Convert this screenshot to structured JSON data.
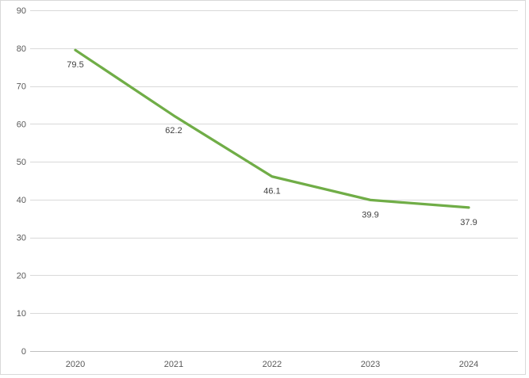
{
  "chart": {
    "background_color": "#FFFFFF",
    "border_color": "#D9D9D9",
    "title": "",
    "legend_visible": false
  },
  "chart_data": {
    "type": "line",
    "categories": [
      "2020",
      "2021",
      "2022",
      "2023",
      "2024"
    ],
    "values": [
      79.5,
      62.2,
      46.1,
      39.9,
      37.9
    ],
    "data_labels": [
      "79.5",
      "62.2",
      "46.1",
      "39.9",
      "37.9"
    ],
    "title": "",
    "xlabel": "",
    "ylabel": "",
    "ylim": [
      0,
      90
    ],
    "y_ticks": [
      0,
      10,
      20,
      30,
      40,
      50,
      60,
      70,
      80,
      90
    ],
    "grid": true,
    "legend_position": "none",
    "line_color": "#70AD47",
    "gridline_color": "#D9D9D9",
    "axis_line_color": "#BFBFBF",
    "tick_label_color": "#595959",
    "data_label_color": "#404040"
  }
}
